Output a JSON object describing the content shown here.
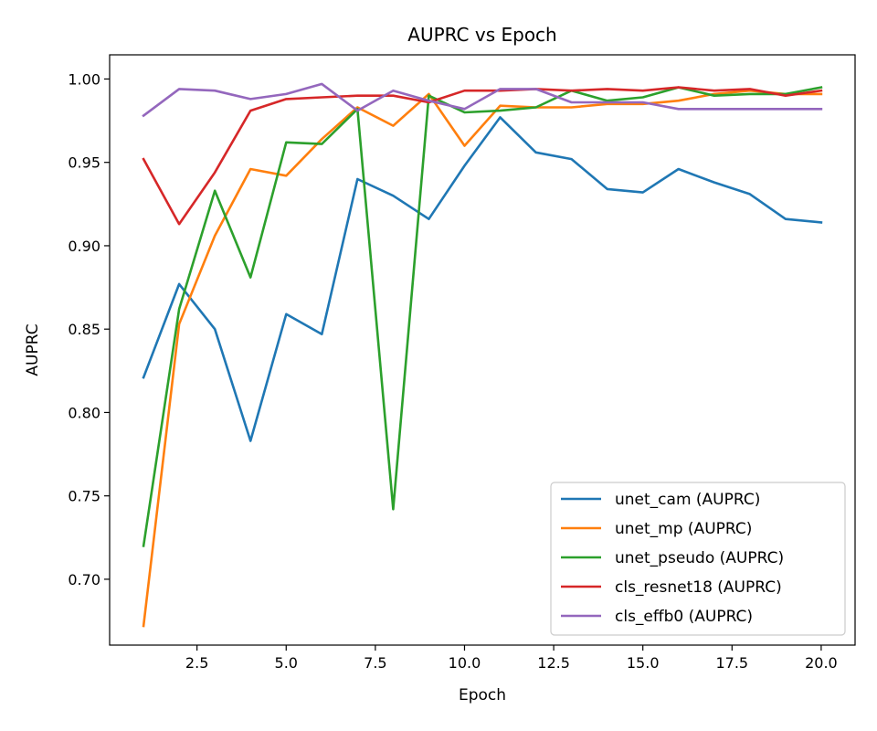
{
  "chart_data": {
    "type": "line",
    "title": "AUPRC vs Epoch",
    "xlabel": "Epoch",
    "ylabel": "AUPRC",
    "xlim": [
      0.05,
      20.95
    ],
    "ylim": [
      0.6605,
      1.0145
    ],
    "xticks": [
      2.5,
      5.0,
      7.5,
      10.0,
      12.5,
      15.0,
      17.5,
      20.0
    ],
    "xtick_labels": [
      "2.5",
      "5.0",
      "7.5",
      "10.0",
      "12.5",
      "15.0",
      "17.5",
      "20.0"
    ],
    "yticks": [
      0.7,
      0.75,
      0.8,
      0.85,
      0.9,
      0.95,
      1.0
    ],
    "ytick_labels": [
      "0.70",
      "0.75",
      "0.80",
      "0.85",
      "0.90",
      "0.95",
      "1.00"
    ],
    "grid": false,
    "legend_position": "lower-right",
    "x": [
      1,
      2,
      3,
      4,
      5,
      6,
      7,
      8,
      9,
      10,
      11,
      12,
      13,
      14,
      15,
      16,
      17,
      18,
      19,
      20
    ],
    "series": [
      {
        "name": "unet_cam (AUPRC)",
        "color": "#1f77b4",
        "values": [
          0.821,
          0.877,
          0.85,
          0.783,
          0.859,
          0.847,
          0.94,
          0.93,
          0.916,
          0.948,
          0.977,
          0.956,
          0.952,
          0.934,
          0.932,
          0.946,
          0.938,
          0.931,
          0.916,
          0.914
        ]
      },
      {
        "name": "unet_mp (AUPRC)",
        "color": "#ff7f0e",
        "values": [
          0.672,
          0.853,
          0.906,
          0.946,
          0.942,
          0.964,
          0.983,
          0.972,
          0.991,
          0.96,
          0.984,
          0.983,
          0.983,
          0.985,
          0.985,
          0.987,
          0.991,
          0.993,
          0.991,
          0.991
        ]
      },
      {
        "name": "unet_pseudo (AUPRC)",
        "color": "#2ca02c",
        "values": [
          0.72,
          0.862,
          0.933,
          0.881,
          0.962,
          0.961,
          0.982,
          0.742,
          0.99,
          0.98,
          0.981,
          0.983,
          0.993,
          0.987,
          0.989,
          0.995,
          0.99,
          0.991,
          0.991,
          0.995
        ]
      },
      {
        "name": "cls_resnet18 (AUPRC)",
        "color": "#d62728",
        "values": [
          0.952,
          0.913,
          0.944,
          0.981,
          0.988,
          0.989,
          0.99,
          0.99,
          0.986,
          0.993,
          0.993,
          0.994,
          0.993,
          0.994,
          0.993,
          0.995,
          0.993,
          0.994,
          0.99,
          0.993
        ]
      },
      {
        "name": "cls_effb0 (AUPRC)",
        "color": "#9467bd",
        "values": [
          0.978,
          0.994,
          0.993,
          0.988,
          0.991,
          0.997,
          0.981,
          0.993,
          0.987,
          0.982,
          0.994,
          0.994,
          0.986,
          0.986,
          0.986,
          0.982,
          0.982,
          0.982,
          0.982,
          0.982
        ]
      }
    ]
  }
}
